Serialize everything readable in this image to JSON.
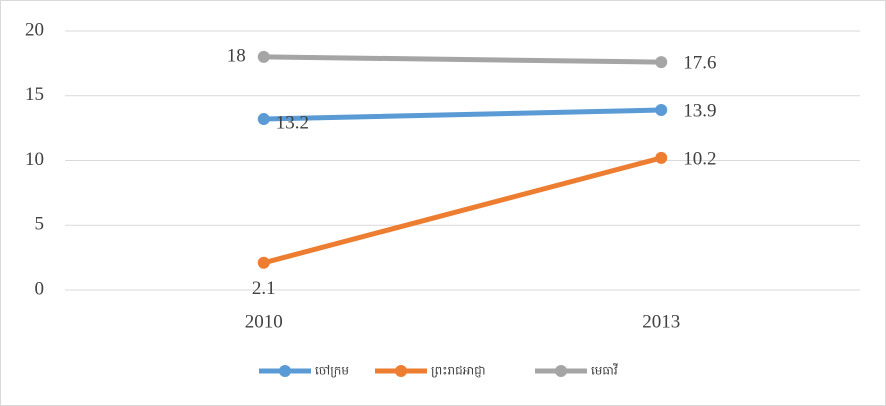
{
  "chart_data": {
    "type": "line",
    "categories": [
      "2010",
      "2013"
    ],
    "series": [
      {
        "name": "ចៅក្រម",
        "color": "#5b9bd5",
        "values": [
          13.2,
          13.9
        ]
      },
      {
        "name": "ព្រះរាជអាជ្ញា",
        "color": "#ed7d31",
        "values": [
          2.1,
          10.2
        ]
      },
      {
        "name": "មេធាវី",
        "color": "#a5a5a5",
        "values": [
          18,
          17.6
        ]
      }
    ],
    "ylim": [
      0,
      20
    ],
    "yticks": [
      0,
      5,
      10,
      15,
      20
    ],
    "grid": true,
    "legend": "bottom"
  }
}
